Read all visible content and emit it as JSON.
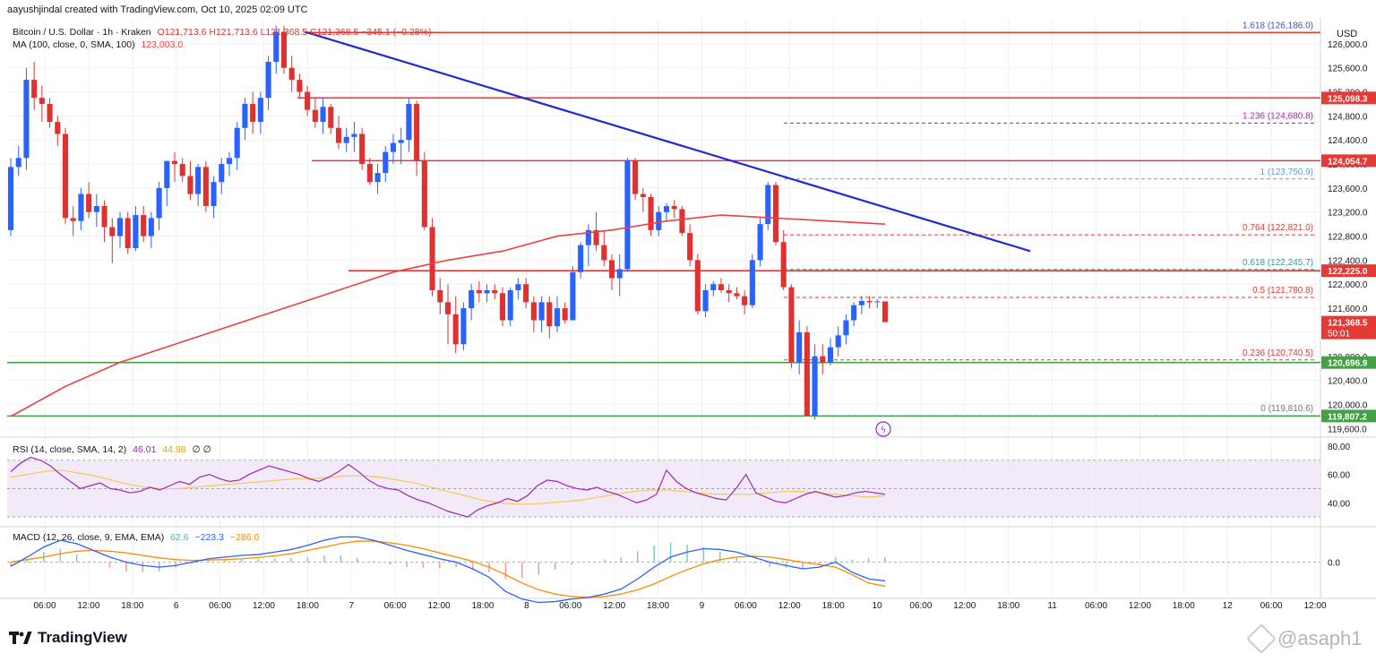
{
  "header": {
    "credit": "aayushjindal created with TradingView.com, Oct 10, 2025 02:09 UTC"
  },
  "legend": {
    "symbol": "Bitcoin / U.S. Dollar · 1h · Kraken",
    "ohlc": "O121,713.6  H121,713.6  L121,368.5  C121,368.5  −345.1 (−0.28%)",
    "ma_label": "MA (100, close, 0, SMA, 100)",
    "ma_value": "123,003.0",
    "rsi_label": "RSI (14, close, SMA, 14, 2)",
    "rsi_value": "46.01",
    "rsi_ma_value": "44.98",
    "rsi_extra": "∅  ∅",
    "macd_label": "MACD (12, 26, close, 9, EMA, EMA)",
    "macd_hist": "62.6",
    "macd_line": "−223.3",
    "macd_signal": "−286.0"
  },
  "brand": {
    "logo": "tradingview-logo-icon",
    "name": "TradingView"
  },
  "watermark": "@asaph1",
  "colors": {
    "up": "#2962ff",
    "down": "#e03131",
    "ma": "#f03e3e",
    "trendline": "#1e2ad6",
    "resistance": "#e53935",
    "support": "#43a047",
    "fib": "#9c27b0",
    "rsi": "#9c27b0",
    "rsi_ma": "#f9c74f",
    "macd": "#2962ff",
    "macd_signal": "#ff8a00"
  },
  "chart_data": [
    {
      "type": "candlestick",
      "currency": "USD",
      "ylim": [
        119500,
        126400
      ],
      "x_ticks": [
        "06:00",
        "12:00",
        "18:00",
        "6",
        "06:00",
        "12:00",
        "18:00",
        "7",
        "06:00",
        "12:00",
        "18:00",
        "8",
        "06:00",
        "12:00",
        "18:00",
        "9",
        "06:00",
        "12:00",
        "18:00",
        "10",
        "06:00",
        "12:00",
        "18:00",
        "11",
        "06:00",
        "12:00",
        "18:00",
        "12",
        "06:00",
        "12:00"
      ],
      "y_ticks": [
        "126,000.0",
        "125,600.0",
        "125,200.0",
        "124,800.0",
        "124,400.0",
        "124,000.0",
        "123,600.0",
        "123,200.0",
        "122,800.0",
        "122,400.0",
        "122,000.0",
        "121,600.0",
        "121,200.0",
        "120,800.0",
        "120,400.0",
        "120,000.0",
        "119,600.0"
      ],
      "candles": [
        [
          122900,
          124100,
          122800,
          123950
        ],
        [
          123950,
          124300,
          123800,
          124100
        ],
        [
          124100,
          125600,
          123900,
          125400
        ],
        [
          125400,
          125700,
          124900,
          125100
        ],
        [
          125100,
          125300,
          124700,
          125000
        ],
        [
          125000,
          125100,
          124600,
          124700
        ],
        [
          124700,
          124800,
          124300,
          124500
        ],
        [
          124500,
          124600,
          123000,
          123100
        ],
        [
          123100,
          123300,
          122800,
          123050
        ],
        [
          123050,
          123600,
          122900,
          123500
        ],
        [
          123500,
          123700,
          123100,
          123200
        ],
        [
          123200,
          123500,
          122950,
          123300
        ],
        [
          123300,
          123400,
          122700,
          122950
        ],
        [
          122950,
          123100,
          122350,
          122800
        ],
        [
          122800,
          123200,
          122600,
          123100
        ],
        [
          123100,
          123200,
          122500,
          122600
        ],
        [
          122600,
          123300,
          122550,
          123150
        ],
        [
          123150,
          123300,
          122700,
          122800
        ],
        [
          122800,
          123200,
          122600,
          123100
        ],
        [
          123100,
          123700,
          122900,
          123600
        ],
        [
          123600,
          124000,
          123300,
          124050
        ],
        [
          124050,
          124200,
          123700,
          124000
        ],
        [
          124000,
          124100,
          123700,
          123800
        ],
        [
          123800,
          124050,
          123400,
          123500
        ],
        [
          123500,
          124000,
          123300,
          123950
        ],
        [
          123950,
          124050,
          123200,
          123300
        ],
        [
          123300,
          123800,
          123100,
          123700
        ],
        [
          123700,
          124100,
          123500,
          124000
        ],
        [
          124000,
          124200,
          123800,
          124100
        ],
        [
          124100,
          124700,
          123900,
          124600
        ],
        [
          124600,
          125100,
          124400,
          125000
        ],
        [
          125000,
          125200,
          124500,
          124700
        ],
        [
          124700,
          125200,
          124500,
          125100
        ],
        [
          125100,
          125800,
          124900,
          125700
        ],
        [
          125700,
          126300,
          125500,
          126200
        ],
        [
          126200,
          126300,
          125500,
          125600
        ],
        [
          125600,
          125800,
          125200,
          125400
        ],
        [
          125400,
          125500,
          125100,
          125200
        ],
        [
          125200,
          125300,
          124800,
          124900
        ],
        [
          124900,
          125100,
          124600,
          124700
        ],
        [
          124700,
          125100,
          124500,
          124950
        ],
        [
          124950,
          125000,
          124500,
          124600
        ],
        [
          124600,
          124800,
          124250,
          124350
        ],
        [
          124350,
          124600,
          124200,
          124450
        ],
        [
          124450,
          124700,
          124200,
          124500
        ],
        [
          124500,
          124600,
          123900,
          124000
        ],
        [
          124000,
          124100,
          123650,
          123700
        ],
        [
          123700,
          124000,
          123500,
          123850
        ],
        [
          123850,
          124300,
          123700,
          124200
        ],
        [
          124200,
          124500,
          124000,
          124350
        ],
        [
          124350,
          124600,
          124000,
          124400
        ],
        [
          124400,
          125100,
          124200,
          125000
        ],
        [
          125000,
          125050,
          123800,
          124050
        ],
        [
          124050,
          124200,
          122900,
          122950
        ],
        [
          122950,
          123100,
          121800,
          121900
        ],
        [
          121900,
          122100,
          121500,
          121700
        ],
        [
          121700,
          122000,
          121000,
          121500
        ],
        [
          121500,
          121800,
          120850,
          121000
        ],
        [
          121000,
          121700,
          120900,
          121600
        ],
        [
          121600,
          122000,
          121400,
          121900
        ],
        [
          121900,
          122050,
          121700,
          121850
        ],
        [
          121850,
          122000,
          121700,
          121900
        ],
        [
          121900,
          122000,
          121750,
          121850
        ],
        [
          121850,
          121950,
          121300,
          121400
        ],
        [
          121400,
          121950,
          121300,
          121900
        ],
        [
          121900,
          122100,
          121750,
          122000
        ],
        [
          122000,
          122100,
          121600,
          121700
        ],
        [
          121700,
          121800,
          121200,
          121400
        ],
        [
          121400,
          121800,
          121200,
          121700
        ],
        [
          121700,
          121800,
          121100,
          121300
        ],
        [
          121300,
          121800,
          121200,
          121600
        ],
        [
          121600,
          121700,
          121350,
          121400
        ],
        [
          121400,
          122300,
          121400,
          122200
        ],
        [
          122200,
          122700,
          122100,
          122650
        ],
        [
          122650,
          123000,
          122300,
          122900
        ],
        [
          122900,
          123200,
          122550,
          122650
        ],
        [
          122650,
          122900,
          122300,
          122400
        ],
        [
          122400,
          122500,
          121900,
          122100
        ],
        [
          122100,
          122500,
          121800,
          122250
        ],
        [
          122250,
          124100,
          122200,
          124050
        ],
        [
          124050,
          124100,
          123400,
          123500
        ],
        [
          123500,
          123600,
          123200,
          123450
        ],
        [
          123450,
          123500,
          122800,
          122900
        ],
        [
          122900,
          123300,
          122800,
          123200
        ],
        [
          123200,
          123350,
          123050,
          123300
        ],
        [
          123300,
          123400,
          123100,
          123250
        ],
        [
          123250,
          123300,
          122800,
          122850
        ],
        [
          122850,
          123000,
          122300,
          122400
        ],
        [
          122400,
          122500,
          121500,
          121550
        ],
        [
          121550,
          122000,
          121450,
          121900
        ],
        [
          121900,
          122050,
          121800,
          122000
        ],
        [
          122000,
          122100,
          121850,
          121900
        ],
        [
          121900,
          122000,
          121700,
          121850
        ],
        [
          121850,
          121950,
          121750,
          121800
        ],
        [
          121800,
          121900,
          121500,
          121650
        ],
        [
          121650,
          122500,
          121600,
          122400
        ],
        [
          122400,
          123100,
          122300,
          123000
        ],
        [
          123000,
          123700,
          122900,
          123650
        ],
        [
          123650,
          123700,
          122650,
          122700
        ],
        [
          122700,
          122900,
          121900,
          121950
        ],
        [
          121950,
          122000,
          120600,
          120700
        ],
        [
          120700,
          121400,
          120500,
          121200
        ],
        [
          121200,
          121300,
          119800,
          119810
        ],
        [
          119810,
          121000,
          119750,
          120800
        ],
        [
          120800,
          121000,
          120500,
          120700
        ],
        [
          120700,
          121100,
          120650,
          120950
        ],
        [
          120950,
          121300,
          120800,
          121150
        ],
        [
          121150,
          121500,
          121000,
          121400
        ],
        [
          121400,
          121700,
          121300,
          121650
        ],
        [
          121650,
          121800,
          121500,
          121720
        ],
        [
          121720,
          121800,
          121600,
          121700
        ],
        [
          121700,
          121750,
          121600,
          121713.6
        ],
        [
          121713.6,
          121713.6,
          121368.5,
          121368.5
        ]
      ],
      "ma100": [
        119800,
        120300,
        120700,
        121000,
        121300,
        121600,
        121900,
        122200,
        122400,
        122550,
        122800,
        122900,
        123050,
        123150,
        123100,
        123050,
        123000
      ],
      "price_labels": [
        {
          "value": 125098.3,
          "text": "125,098.3",
          "color": "#e53935"
        },
        {
          "value": 124054.7,
          "text": "124,054.7",
          "color": "#e53935"
        },
        {
          "value": 122225.0,
          "text": "122,225.0",
          "color": "#e53935"
        },
        {
          "value": 121368.5,
          "text": "121,368.5",
          "sub": "50:01",
          "color": "#e53935"
        },
        {
          "value": 120696.9,
          "text": "120,696.9",
          "color": "#43a047"
        },
        {
          "value": 119807.2,
          "text": "119,807.2",
          "color": "#43a047"
        }
      ],
      "fib_levels": [
        {
          "ratio": "1.618",
          "value": 126186.0,
          "label": "1.618 (126,186.0)",
          "color": "#3f51b5"
        },
        {
          "ratio": "1.236",
          "value": 124680.8,
          "label": "1.236 (124,680.8)",
          "color": "#9c27b0"
        },
        {
          "ratio": "1",
          "value": 123750.9,
          "label": "1 (123,750.9)",
          "color": "#5c9dd6"
        },
        {
          "ratio": "0.764",
          "value": 122821.0,
          "label": "0.764 (122,821.0)",
          "color": "#e53935"
        },
        {
          "ratio": "0.618",
          "value": 122245.7,
          "label": "0.618 (122,245.7)",
          "color": "#26a69a"
        },
        {
          "ratio": "0.5",
          "value": 121780.8,
          "label": "0.5 (121,780.8)",
          "color": "#e53935"
        },
        {
          "ratio": "0.236",
          "value": 120740.5,
          "label": "0.236 (120,740.5)",
          "color": "#e53935"
        },
        {
          "ratio": "0",
          "value": 119810.6,
          "label": "0 (119,810.6)",
          "color": "#757575"
        }
      ],
      "resistance_lines": [
        126186.0,
        125098.3,
        124054.7,
        122225.0
      ],
      "support_lines": [
        120696.9,
        119807.2
      ],
      "trendline": {
        "from": 126200,
        "to": 122550
      }
    },
    {
      "type": "line",
      "name": "RSI",
      "ylim": [
        25,
        85
      ],
      "y_ticks": [
        "80.00",
        "60.00",
        "40.00"
      ],
      "band": [
        30,
        70
      ],
      "mid": 50,
      "rsi": [
        62,
        68,
        72,
        70,
        66,
        60,
        55,
        50,
        52,
        54,
        50,
        49,
        47,
        48,
        51,
        49,
        52,
        55,
        53,
        58,
        60,
        57,
        55,
        56,
        60,
        63,
        66,
        64,
        62,
        60,
        57,
        55,
        58,
        62,
        67,
        62,
        56,
        52,
        50,
        49,
        45,
        42,
        40,
        37,
        34,
        32,
        30,
        35,
        38,
        40,
        43,
        41,
        45,
        52,
        56,
        55,
        52,
        50,
        49,
        51,
        48,
        46,
        43,
        40,
        42,
        46,
        63,
        55,
        50,
        47,
        45,
        43,
        42,
        50,
        60,
        47,
        44,
        41,
        40,
        43,
        46,
        48,
        46,
        44,
        45,
        47,
        48,
        47,
        46.01
      ],
      "rsi_ma": [
        58,
        60,
        62,
        63,
        61,
        59,
        56,
        53,
        51,
        50,
        50,
        51,
        52,
        53,
        54,
        55,
        56,
        57,
        57,
        58,
        59,
        59,
        58,
        56,
        54,
        51,
        48,
        45,
        42,
        40,
        39,
        39,
        40,
        41,
        42,
        44,
        46,
        48,
        49,
        49,
        48,
        47,
        46,
        46,
        46,
        47,
        48,
        48,
        47,
        46,
        45,
        44,
        44.98
      ]
    },
    {
      "type": "line",
      "name": "MACD",
      "ylim": [
        -400,
        400
      ],
      "y_ticks": [
        "0.0"
      ],
      "macd": [
        -50,
        60,
        180,
        260,
        220,
        140,
        60,
        0,
        -40,
        -60,
        -40,
        0,
        40,
        60,
        80,
        90,
        120,
        150,
        200,
        260,
        300,
        300,
        260,
        200,
        140,
        90,
        40,
        0,
        -80,
        -180,
        -350,
        -440,
        -480,
        -470,
        -440,
        -420,
        -380,
        -320,
        -200,
        -60,
        60,
        120,
        160,
        150,
        120,
        60,
        0,
        -40,
        -80,
        -60,
        0,
        -120,
        -200,
        -223.3
      ],
      "signal": [
        0,
        30,
        60,
        100,
        130,
        140,
        130,
        110,
        80,
        50,
        30,
        20,
        25,
        30,
        40,
        55,
        75,
        100,
        140,
        180,
        220,
        250,
        250,
        230,
        200,
        160,
        110,
        60,
        10,
        -60,
        -150,
        -250,
        -330,
        -380,
        -410,
        -420,
        -410,
        -380,
        -330,
        -260,
        -170,
        -90,
        -20,
        30,
        60,
        70,
        60,
        30,
        0,
        -30,
        -60,
        -150,
        -250,
        -286.0
      ],
      "hist": [
        -50,
        30,
        120,
        160,
        90,
        0,
        -70,
        -110,
        -120,
        -110,
        -70,
        -20,
        15,
        30,
        40,
        35,
        45,
        50,
        60,
        80,
        80,
        50,
        10,
        -30,
        -60,
        -70,
        -70,
        -60,
        -90,
        -120,
        -200,
        -190,
        -150,
        -90,
        -30,
        0,
        30,
        60,
        130,
        200,
        230,
        210,
        180,
        120,
        60,
        -10,
        -60,
        -70,
        -80,
        -30,
        60,
        30,
        50,
        62.6
      ]
    }
  ]
}
